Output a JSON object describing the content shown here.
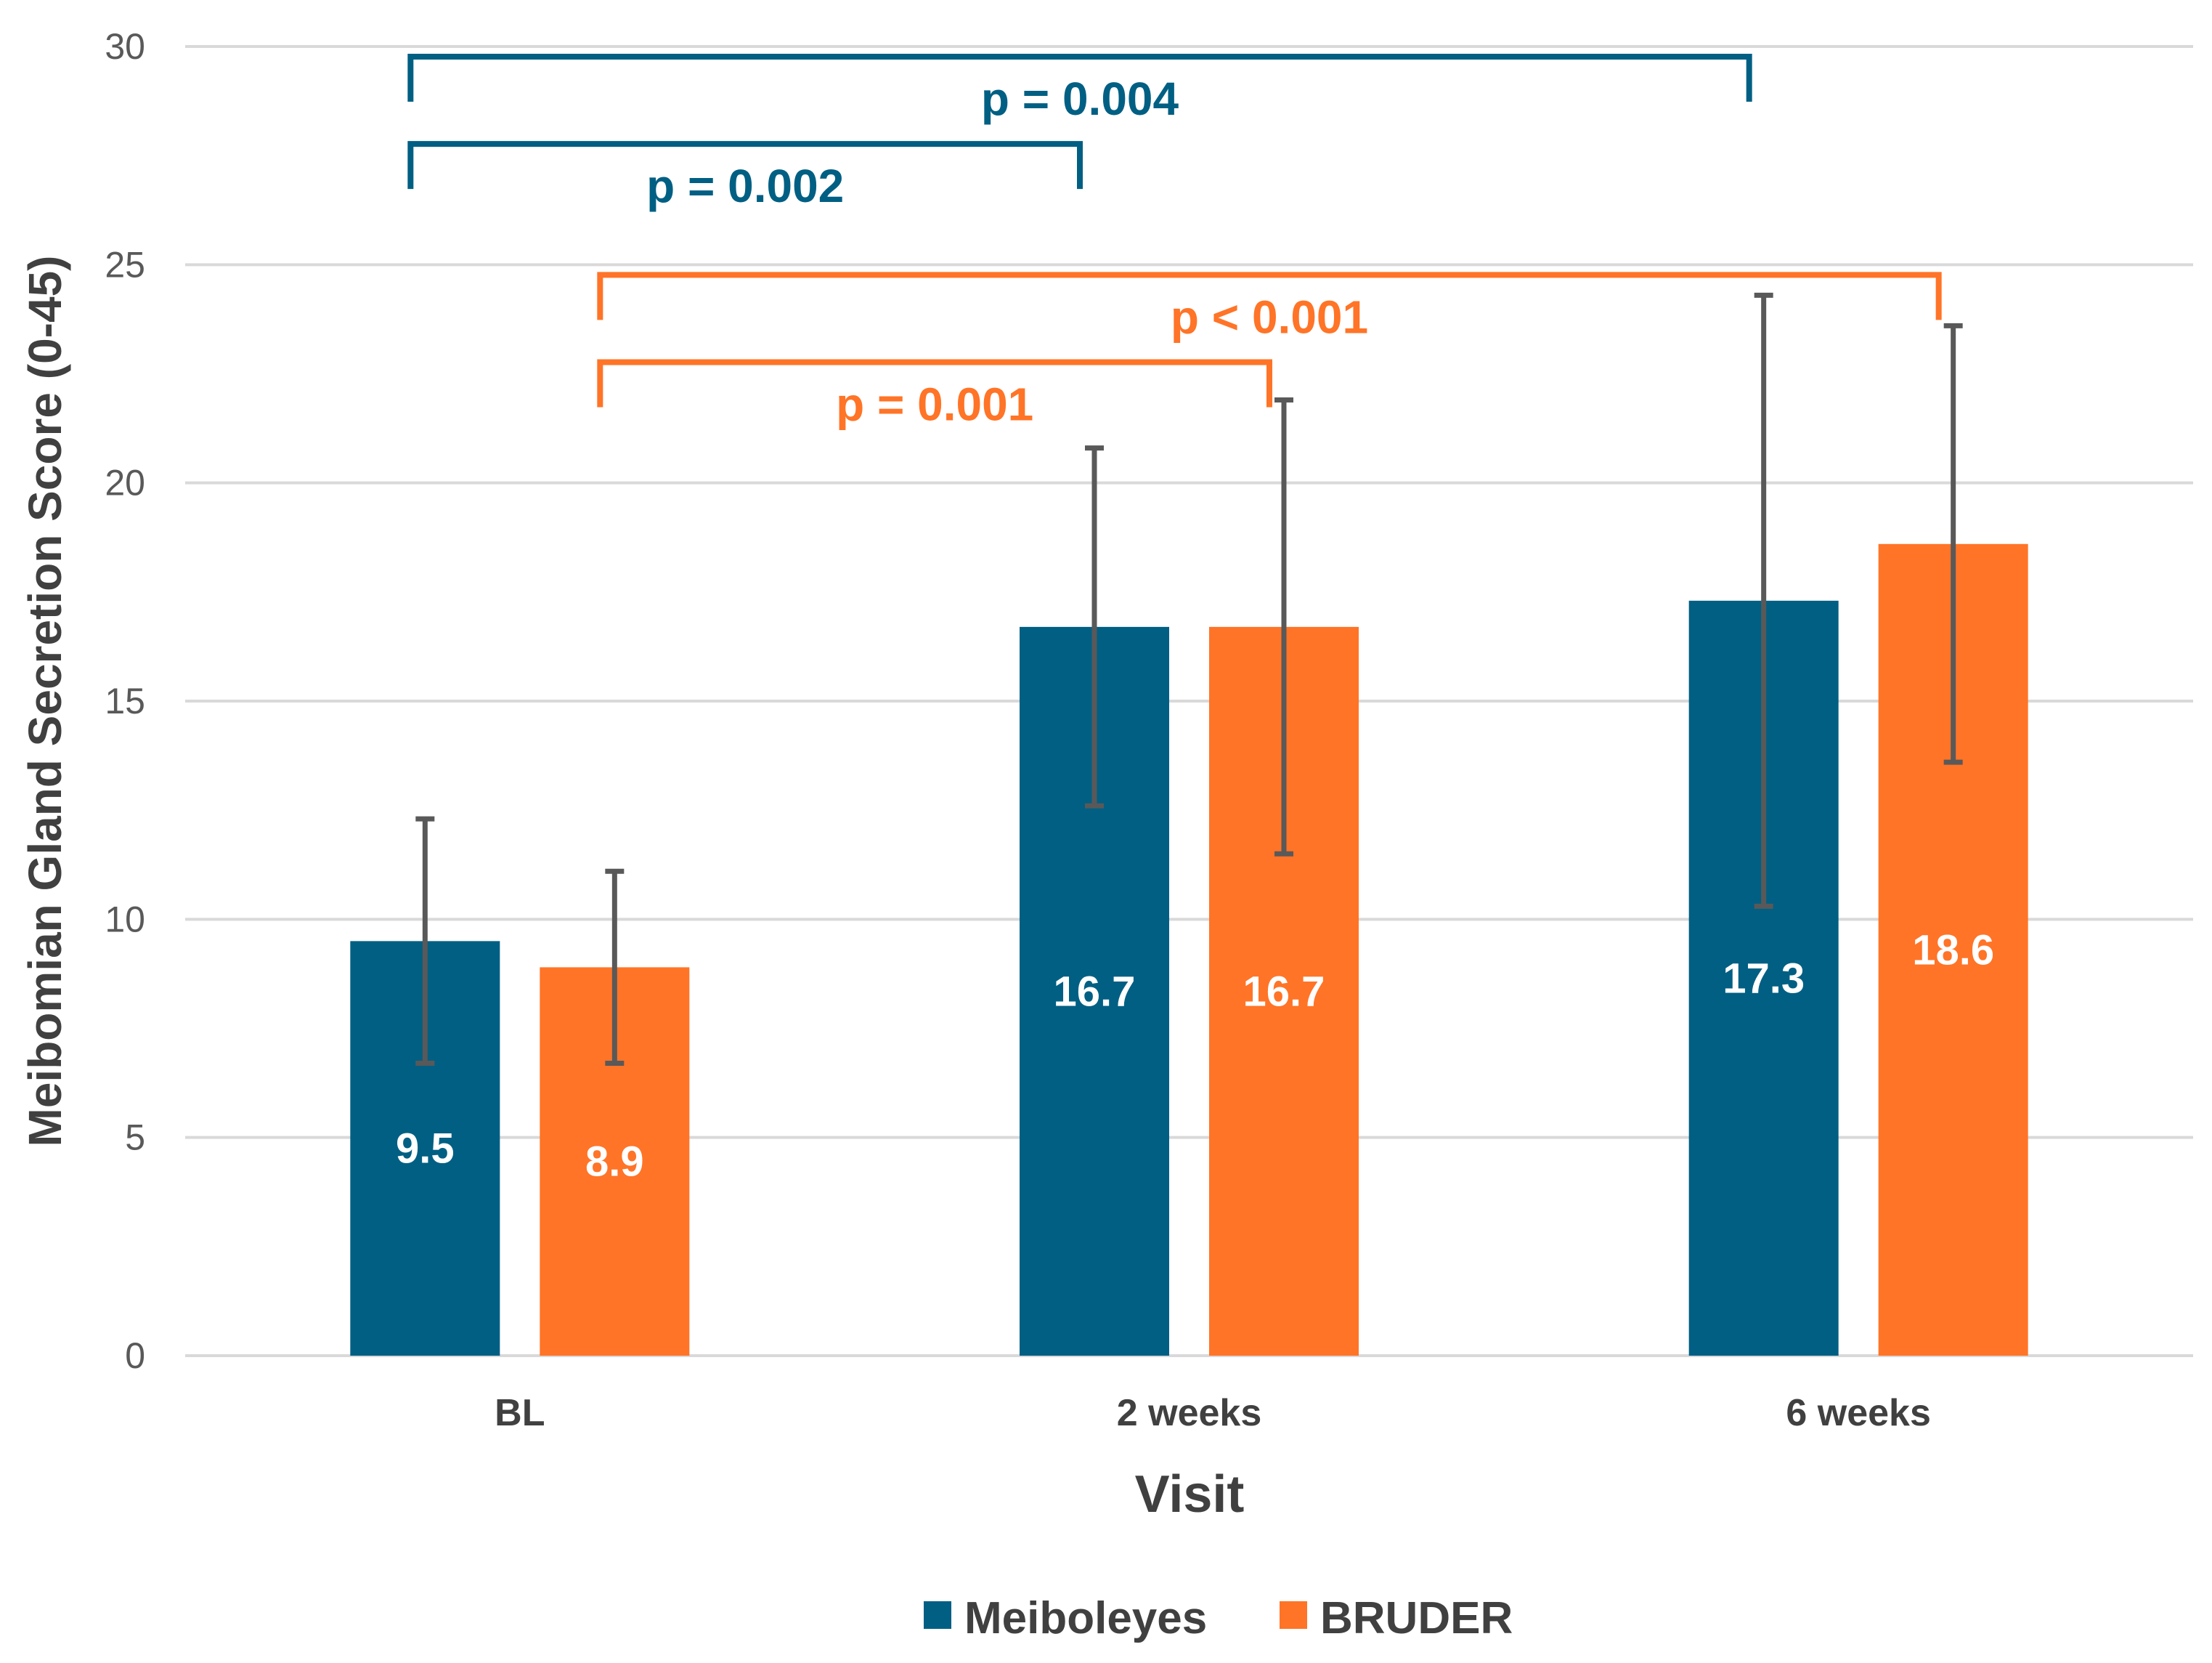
{
  "chart_data": {
    "type": "bar",
    "title": "",
    "xlabel": "Visit",
    "ylabel": "Meibomian Gland Secretion Score (0-45)",
    "ylim": [
      0,
      30
    ],
    "yticks": [
      "0",
      "5",
      "10",
      "15",
      "20",
      "25",
      "30"
    ],
    "grid": true,
    "legend_position": "bottom-center",
    "categories": [
      "BL",
      "2 weeks",
      "6 weeks"
    ],
    "series": [
      {
        "name": "Meiboleyes",
        "color": "#005f83",
        "values": [
          9.5,
          16.7,
          17.3
        ],
        "labels": [
          "9.5",
          "16.7",
          "17.3"
        ],
        "error_low": [
          6.7,
          12.6,
          10.3
        ],
        "error_high": [
          12.3,
          20.8,
          24.3
        ]
      },
      {
        "name": "BRUDER",
        "color": "#ff7427",
        "values": [
          8.9,
          16.7,
          18.6
        ],
        "labels": [
          "8.9",
          "16.7",
          "18.6"
        ],
        "error_low": [
          6.7,
          11.5,
          13.6
        ],
        "error_high": [
          11.1,
          21.9,
          23.6
        ]
      }
    ],
    "annotations": [
      {
        "text": "p = 0.004",
        "series": 0,
        "from": 0,
        "to": 2,
        "y": 30
      },
      {
        "text": "p = 0.002",
        "series": 0,
        "from": 0,
        "to": 1,
        "y": 28
      },
      {
        "text": "p < 0.001",
        "series": 1,
        "from": 0,
        "to": 2,
        "y": 25
      },
      {
        "text": "p = 0.001",
        "series": 1,
        "from": 0,
        "to": 1,
        "y": 23
      }
    ]
  }
}
